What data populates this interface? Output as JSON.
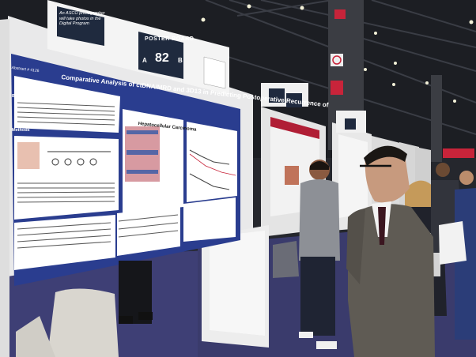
{
  "scene": {
    "description_tags": [
      "conference-hall",
      "poster-session",
      "attendees"
    ],
    "asco_sign_text": "An ASCO photographer will take photos in the Digital Program",
    "poster_board_label": "POSTER BOARD",
    "poster_board_number": "82",
    "poster_board_left_letter": "A",
    "poster_board_right_letter": "B",
    "poster": {
      "abstract_id": "Abstract # 4126",
      "title": "Comparative Analysis of ctDNA/MRD and 3D13 in Predicting Postoperative Recurrence of",
      "subtitle": "Hepatocellular Carcinoma",
      "section_background": "Background",
      "section_methods": "Methods"
    }
  },
  "colors": {
    "poster_blue": "#2a3d8f",
    "board_white": "#e9e9ea",
    "ceiling_dark": "#1d1f24",
    "carpet": "#3e3f75",
    "sign_navy": "#1f2a3e",
    "exit_red": "#c8243a"
  }
}
